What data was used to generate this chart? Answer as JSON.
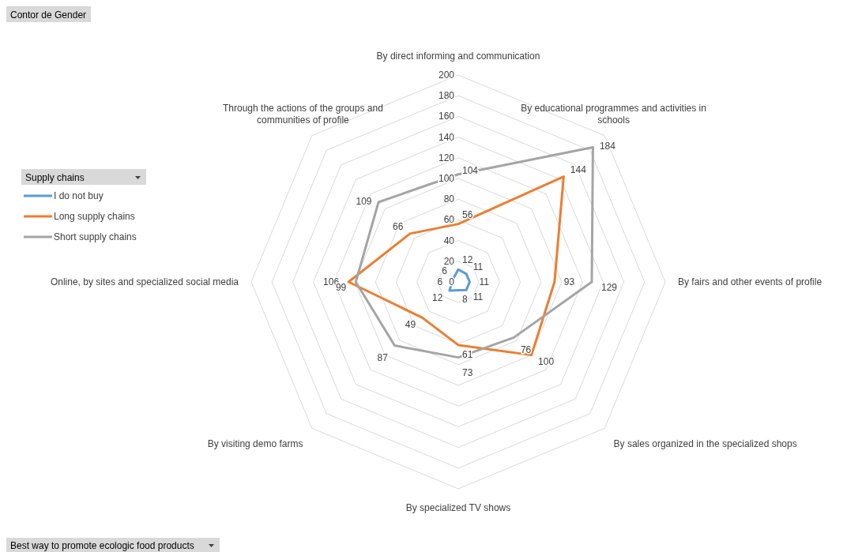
{
  "chart_data": {
    "type": "radar",
    "categories": [
      "By direct informing and communication",
      "By educational programmes and activities in schools",
      "By fairs and other events of profile",
      "By sales organized in the specialized shops",
      "By specialized TV shows",
      "By visiting demo farms",
      "Online, by sites and specialized social media",
      "Through the actions of the groups and communities of profile"
    ],
    "series": [
      {
        "name": "I do not buy",
        "color": "#5b9bd5",
        "values": [
          12,
          11,
          11,
          11,
          8,
          12,
          6,
          6
        ]
      },
      {
        "name": "Long supply chains",
        "color": "#ed7d31",
        "values": [
          56,
          144,
          93,
          100,
          61,
          49,
          106,
          66
        ]
      },
      {
        "name": "Short supply chains",
        "color": "#a5a5a5",
        "values": [
          104,
          184,
          129,
          76,
          73,
          87,
          99,
          109
        ]
      }
    ],
    "ylim": [
      0,
      200
    ],
    "yticks": [
      0,
      20,
      40,
      60,
      80,
      100,
      120,
      140,
      160,
      180,
      200
    ],
    "grid": true,
    "legend": "left",
    "legend_title": "Supply chains",
    "data_labels": true,
    "marker": "none",
    "annotations": [
      "Contor de Gender",
      "Best way to promote ecologic food products"
    ]
  }
}
